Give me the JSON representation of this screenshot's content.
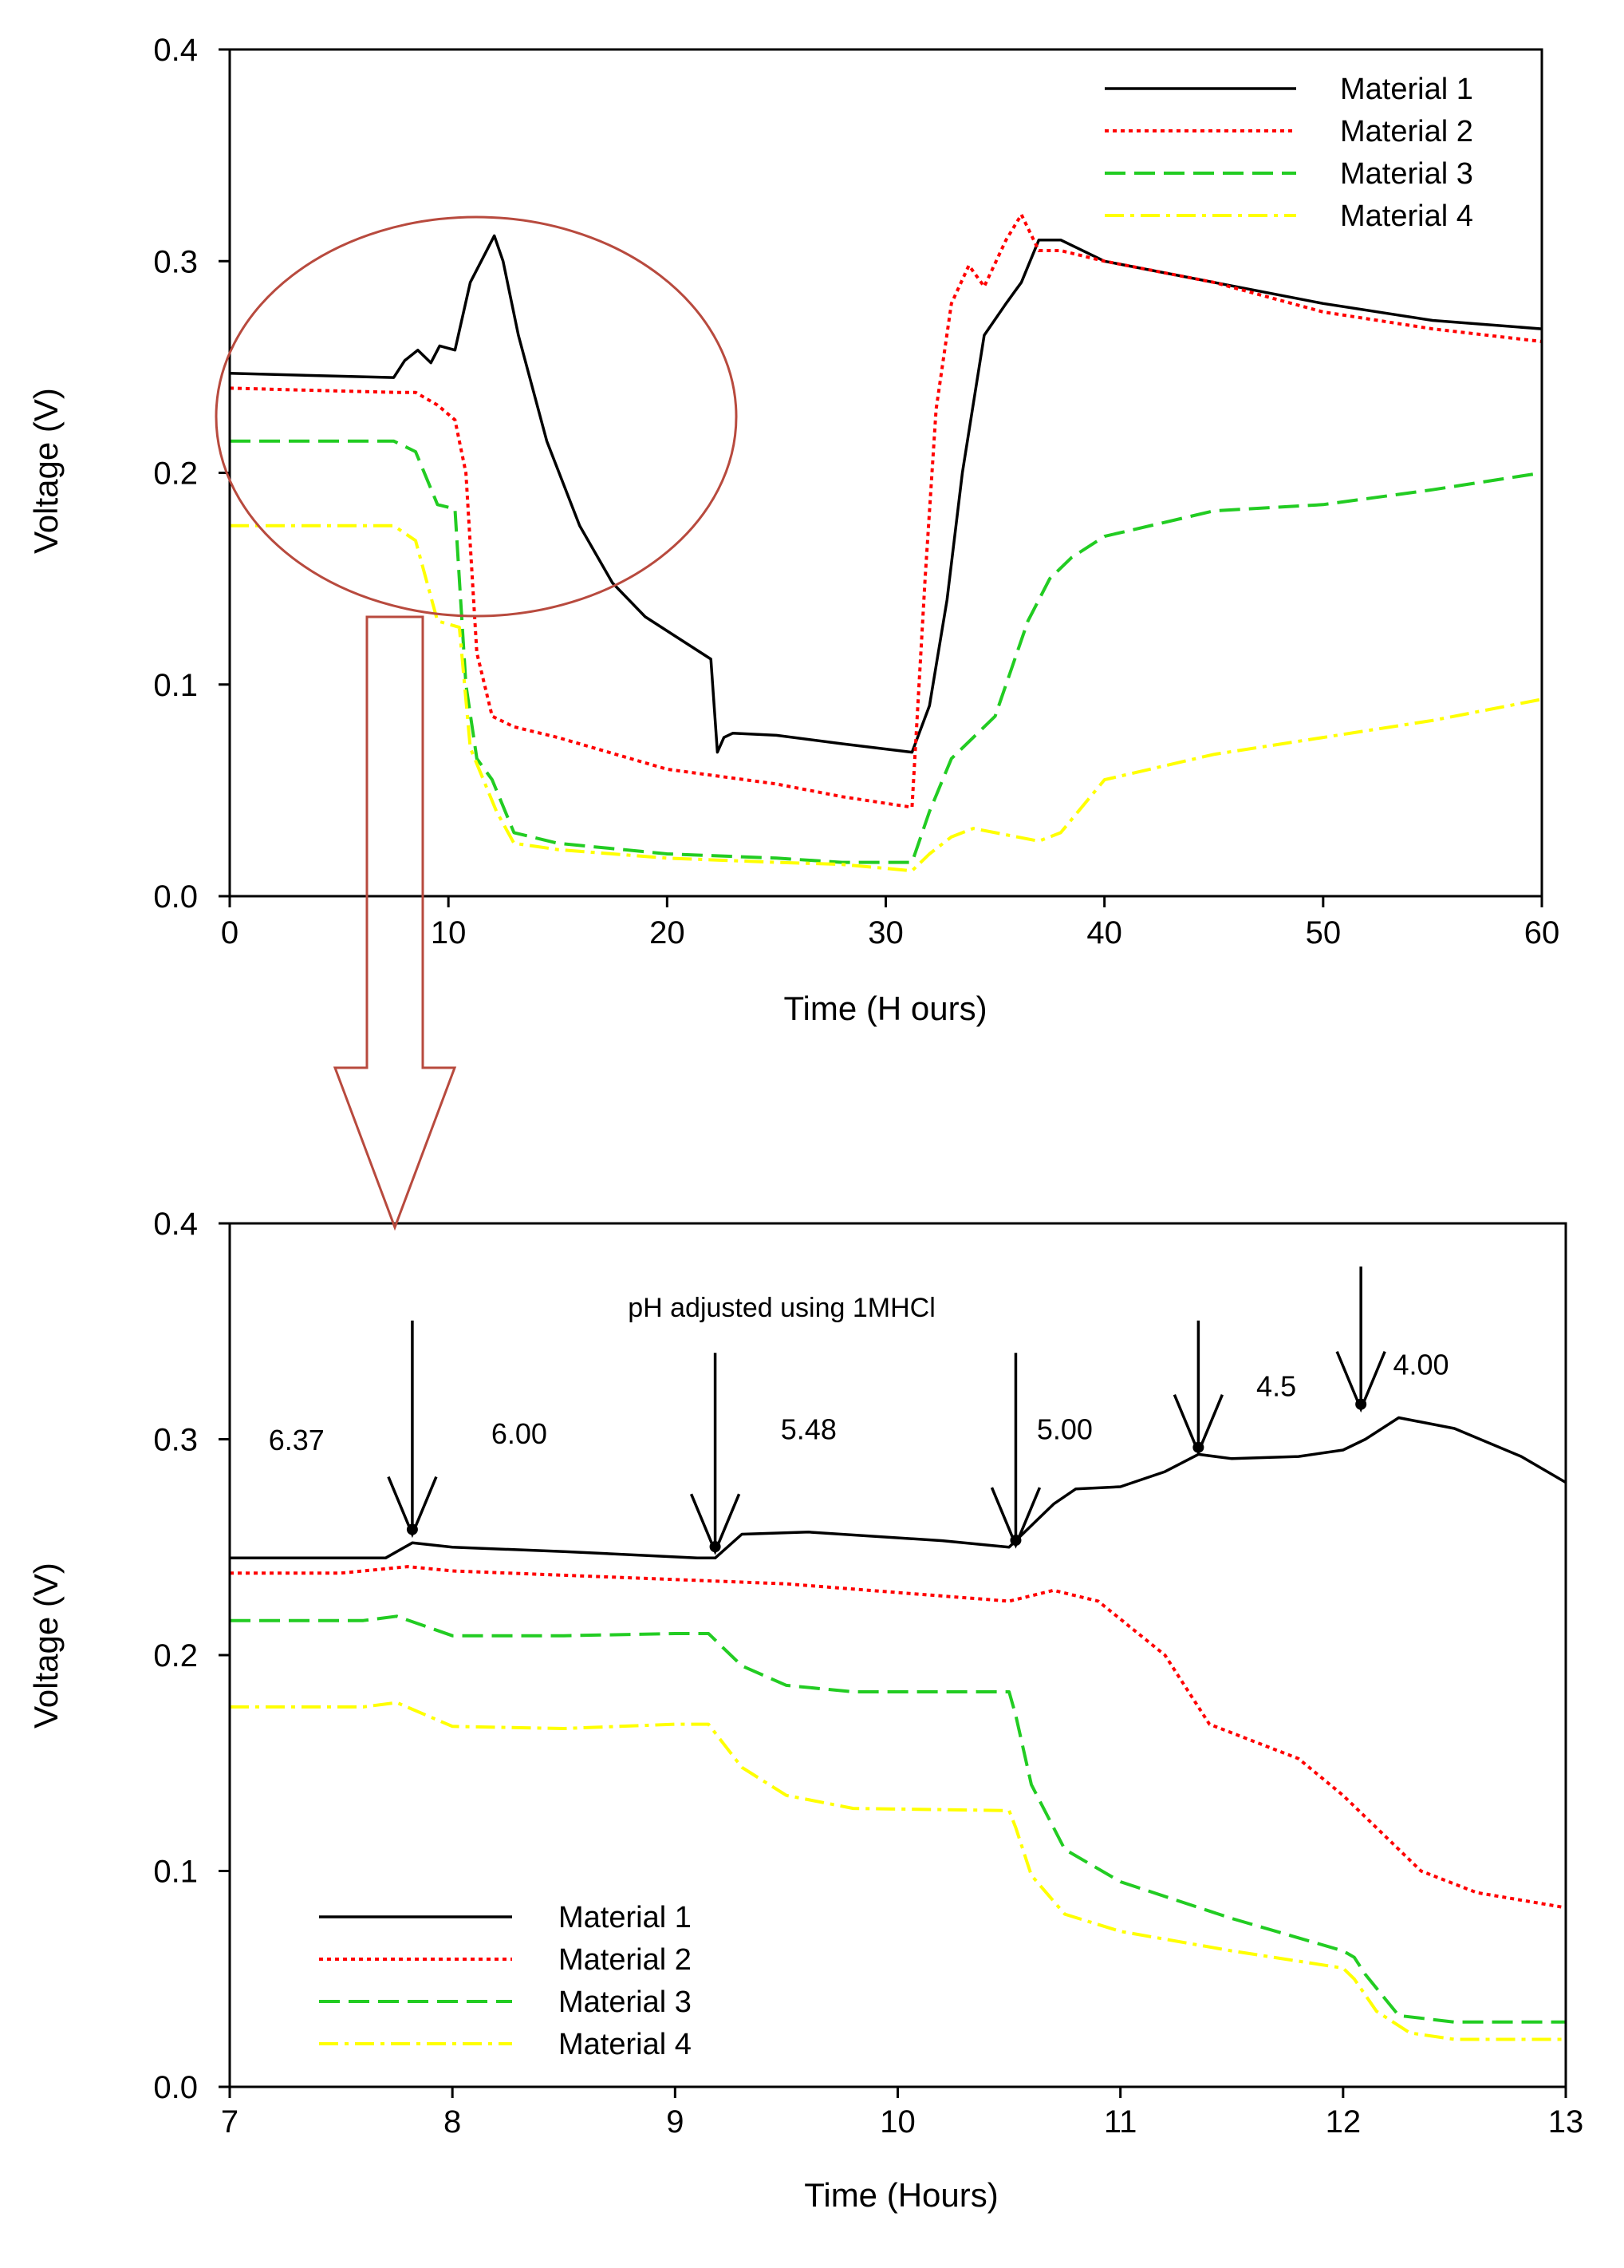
{
  "chart_data": [
    {
      "type": "line",
      "title": "",
      "xlabel": "Time (H ours)",
      "ylabel": "Voltage (V)",
      "xlim": [
        0,
        60
      ],
      "ylim": [
        0,
        0.4
      ],
      "xticks": [
        0,
        10,
        20,
        30,
        40,
        50,
        60
      ],
      "xtick_labels": [
        "0",
        "10",
        "20",
        "30",
        "40",
        "50",
        "60"
      ],
      "yticks": [
        0,
        0.1,
        0.2,
        0.3,
        0.4
      ],
      "ytick_labels": [
        "0.0",
        "0.1",
        "0.2",
        "0.3",
        "0.4"
      ],
      "legend_position": "top-right",
      "series": [
        {
          "name": "Material 1",
          "color": "#000000",
          "dash": "solid",
          "x": [
            0,
            7.5,
            8,
            8.6,
            9.2,
            9.6,
            10.3,
            11,
            11.5,
            12.1,
            12.5,
            13.2,
            14.5,
            16,
            17.5,
            19,
            20.5,
            22,
            22.3,
            22.6,
            23,
            25,
            28,
            31.2,
            32,
            32.8,
            33.5,
            34.5,
            35.5,
            36.2,
            37,
            38,
            40,
            45,
            50,
            55,
            60
          ],
          "y": [
            0.247,
            0.245,
            0.253,
            0.258,
            0.252,
            0.26,
            0.258,
            0.29,
            0.3,
            0.312,
            0.3,
            0.265,
            0.215,
            0.175,
            0.148,
            0.132,
            0.122,
            0.112,
            0.068,
            0.075,
            0.077,
            0.076,
            0.072,
            0.068,
            0.09,
            0.14,
            0.2,
            0.265,
            0.28,
            0.29,
            0.31,
            0.31,
            0.3,
            0.29,
            0.28,
            0.272,
            0.268
          ]
        },
        {
          "name": "Material 2",
          "color": "#ff0000",
          "dash": "dotted",
          "x": [
            0,
            7.5,
            8.5,
            9.5,
            10.3,
            10.8,
            11.3,
            12,
            13,
            15,
            20,
            25,
            28,
            31.2,
            31.8,
            32.3,
            33,
            33.8,
            34.5,
            35.5,
            36.2,
            37,
            38,
            40,
            45,
            50,
            55,
            60
          ],
          "y": [
            0.24,
            0.238,
            0.238,
            0.232,
            0.225,
            0.2,
            0.115,
            0.085,
            0.08,
            0.075,
            0.06,
            0.053,
            0.047,
            0.042,
            0.15,
            0.23,
            0.28,
            0.298,
            0.288,
            0.31,
            0.322,
            0.305,
            0.305,
            0.3,
            0.29,
            0.276,
            0.268,
            0.262
          ]
        },
        {
          "name": "Material 3",
          "color": "#22cc22",
          "dash": "dashed",
          "x": [
            0,
            7.5,
            8.5,
            9.5,
            10.3,
            10.8,
            11.3,
            12,
            13,
            15,
            20,
            25,
            28,
            31.2,
            32,
            33,
            34,
            35,
            35.5,
            36.5,
            37.5,
            38.5,
            40,
            45,
            50,
            55,
            60
          ],
          "y": [
            0.215,
            0.215,
            0.21,
            0.185,
            0.183,
            0.1,
            0.065,
            0.055,
            0.03,
            0.025,
            0.02,
            0.018,
            0.016,
            0.016,
            0.04,
            0.065,
            0.075,
            0.085,
            0.1,
            0.13,
            0.15,
            0.16,
            0.17,
            0.182,
            0.185,
            0.192,
            0.2
          ]
        },
        {
          "name": "Material 4",
          "color": "#ffff00",
          "dash": "dashdot",
          "x": [
            0,
            7.5,
            8.5,
            9.5,
            10.5,
            11,
            12.2,
            13,
            15,
            20,
            25,
            28,
            31.2,
            32,
            33,
            34,
            35,
            36,
            37,
            38,
            40,
            45,
            50,
            55,
            60
          ],
          "y": [
            0.175,
            0.175,
            0.168,
            0.13,
            0.127,
            0.07,
            0.04,
            0.025,
            0.022,
            0.018,
            0.016,
            0.015,
            0.012,
            0.02,
            0.028,
            0.032,
            0.03,
            0.028,
            0.026,
            0.03,
            0.055,
            0.067,
            0.075,
            0.083,
            0.093
          ]
        }
      ]
    },
    {
      "type": "line",
      "title": "pH adjusted using 1MHCl",
      "xlabel": "Time (Hours)",
      "ylabel": "Voltage (V)",
      "xlim": [
        7,
        13
      ],
      "ylim": [
        0,
        0.4
      ],
      "xticks": [
        7,
        8,
        9,
        10,
        11,
        12,
        13
      ],
      "xtick_labels": [
        "7",
        "8",
        "9",
        "10",
        "11",
        "12",
        "13"
      ],
      "yticks": [
        0,
        0.1,
        0.2,
        0.3,
        0.4
      ],
      "ytick_labels": [
        "0.0",
        "0.1",
        "0.2",
        "0.3",
        "0.4"
      ],
      "legend_position": "bottom-left",
      "annotations": [
        {
          "text": "6.37",
          "x": 7.3,
          "y": 0.295
        },
        {
          "text": "6.00",
          "x": 8.3,
          "y": 0.298
        },
        {
          "text": "5.48",
          "x": 9.6,
          "y": 0.3
        },
        {
          "text": "5.00",
          "x": 10.75,
          "y": 0.3
        },
        {
          "text": "4.5",
          "x": 11.7,
          "y": 0.32
        },
        {
          "text": "4.00",
          "x": 12.35,
          "y": 0.33
        }
      ],
      "arrows": [
        {
          "x": 7.82,
          "y_from": 0.355,
          "y_to": 0.256
        },
        {
          "x": 9.18,
          "y_from": 0.34,
          "y_to": 0.248
        },
        {
          "x": 10.53,
          "y_from": 0.34,
          "y_to": 0.251
        },
        {
          "x": 11.35,
          "y_from": 0.355,
          "y_to": 0.294
        },
        {
          "x": 12.08,
          "y_from": 0.38,
          "y_to": 0.314
        }
      ],
      "series": [
        {
          "name": "Material 1",
          "color": "#000000",
          "dash": "solid",
          "x": [
            7,
            7.7,
            7.82,
            8,
            8.5,
            9.1,
            9.18,
            9.3,
            9.6,
            10.2,
            10.5,
            10.55,
            10.7,
            10.8,
            11,
            11.2,
            11.35,
            11.5,
            11.8,
            12,
            12.1,
            12.25,
            12.5,
            12.8,
            13
          ],
          "y": [
            0.245,
            0.245,
            0.252,
            0.25,
            0.248,
            0.245,
            0.245,
            0.256,
            0.257,
            0.253,
            0.25,
            0.255,
            0.27,
            0.277,
            0.278,
            0.285,
            0.293,
            0.291,
            0.292,
            0.295,
            0.3,
            0.31,
            0.305,
            0.292,
            0.28
          ]
        },
        {
          "name": "Material 2",
          "color": "#ff0000",
          "dash": "dotted",
          "x": [
            7,
            7.5,
            7.8,
            8,
            8.5,
            9,
            9.5,
            10,
            10.5,
            10.7,
            10.9,
            11.2,
            11.4,
            11.6,
            11.8,
            12,
            12.2,
            12.35,
            12.6,
            13
          ],
          "y": [
            0.238,
            0.238,
            0.241,
            0.239,
            0.237,
            0.235,
            0.233,
            0.229,
            0.225,
            0.23,
            0.225,
            0.2,
            0.168,
            0.16,
            0.152,
            0.135,
            0.115,
            0.1,
            0.09,
            0.083
          ]
        },
        {
          "name": "Material 3",
          "color": "#22cc22",
          "dash": "dashed",
          "x": [
            7,
            7.6,
            7.75,
            8,
            8.5,
            9,
            9.15,
            9.3,
            9.5,
            9.8,
            10.5,
            10.53,
            10.6,
            10.75,
            11,
            11.5,
            12,
            12.05,
            12.1,
            12.25,
            12.5,
            13
          ],
          "y": [
            0.216,
            0.216,
            0.218,
            0.209,
            0.209,
            0.21,
            0.21,
            0.195,
            0.186,
            0.183,
            0.183,
            0.172,
            0.14,
            0.11,
            0.095,
            0.078,
            0.063,
            0.06,
            0.052,
            0.033,
            0.03,
            0.03
          ]
        },
        {
          "name": "Material 4",
          "color": "#ffff00",
          "dash": "dashdot",
          "x": [
            7,
            7.6,
            7.75,
            8,
            8.5,
            9,
            9.15,
            9.3,
            9.5,
            9.8,
            10.5,
            10.53,
            10.6,
            10.75,
            11,
            11.5,
            12,
            12.05,
            12.15,
            12.3,
            12.5,
            13
          ],
          "y": [
            0.176,
            0.176,
            0.178,
            0.167,
            0.166,
            0.168,
            0.168,
            0.148,
            0.135,
            0.129,
            0.128,
            0.12,
            0.098,
            0.08,
            0.072,
            0.063,
            0.055,
            0.05,
            0.035,
            0.025,
            0.022,
            0.022
          ]
        }
      ]
    }
  ]
}
